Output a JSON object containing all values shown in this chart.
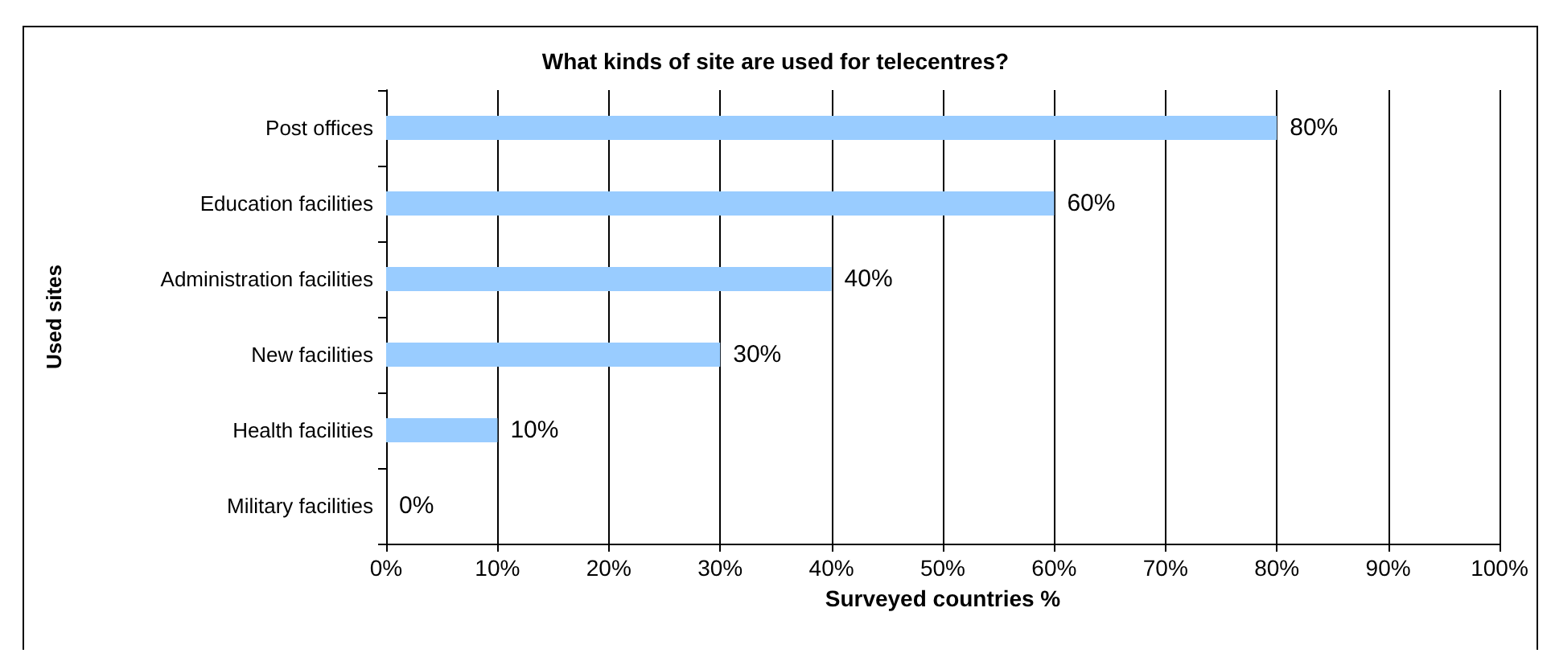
{
  "chart_data": {
    "type": "bar",
    "orientation": "horizontal",
    "title": "What kinds of site are used for telecentres?",
    "xlabel": "Surveyed countries %",
    "ylabel": "Used sites",
    "categories": [
      "Post offices",
      "Education facilities",
      "Administration facilities",
      "New facilities",
      "Health facilities",
      "Military facilities"
    ],
    "values": [
      80,
      60,
      40,
      30,
      10,
      0
    ],
    "value_labels": [
      "80%",
      "60%",
      "40%",
      "30%",
      "10%",
      "0%"
    ],
    "color": "#99ccff",
    "xlim": [
      0,
      100
    ],
    "xticks": [
      {
        "value": 0,
        "label": "0%"
      },
      {
        "value": 10,
        "label": "10%"
      },
      {
        "value": 20,
        "label": "20%"
      },
      {
        "value": 30,
        "label": "30%"
      },
      {
        "value": 40,
        "label": "40%"
      },
      {
        "value": 50,
        "label": "50%"
      },
      {
        "value": 60,
        "label": "60%"
      },
      {
        "value": 70,
        "label": "70%"
      },
      {
        "value": 80,
        "label": "80%"
      },
      {
        "value": 90,
        "label": "90%"
      },
      {
        "value": 100,
        "label": "100%"
      }
    ],
    "grid": "x"
  }
}
